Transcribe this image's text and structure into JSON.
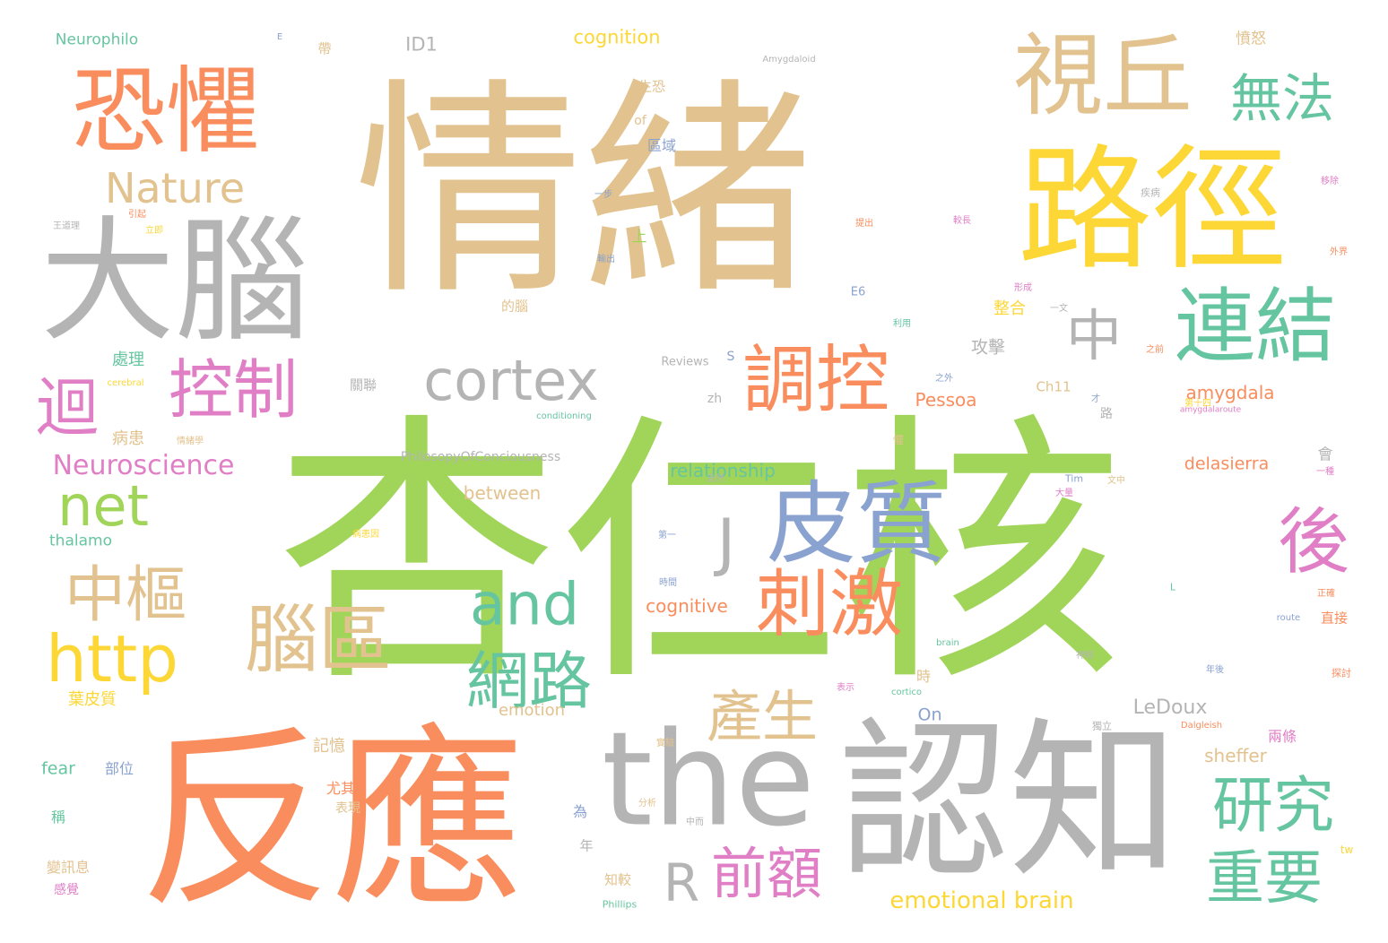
{
  "colors": {
    "green": "#a1d55a",
    "tan": "#e2c28e",
    "orange": "#f98d5d",
    "yellow": "#fcd736",
    "gray": "#b4b4b4",
    "teal": "#66c5a1",
    "pink": "#e07ec6",
    "blue": "#8aa2cf"
  },
  "words": [
    {
      "text": "杏仁核",
      "color": "green"
    },
    {
      "text": "情緒",
      "color": "tan"
    },
    {
      "text": "反應",
      "color": "orange"
    },
    {
      "text": "認知",
      "color": "gray"
    },
    {
      "text": "路徑",
      "color": "yellow"
    },
    {
      "text": "大腦",
      "color": "gray"
    },
    {
      "text": "恐懼",
      "color": "orange"
    },
    {
      "text": "the",
      "color": "gray"
    },
    {
      "text": "視丘",
      "color": "tan"
    },
    {
      "text": "皮質",
      "color": "blue"
    },
    {
      "text": "cortex",
      "color": "gray"
    },
    {
      "text": "連結",
      "color": "teal"
    },
    {
      "text": "調控",
      "color": "orange"
    },
    {
      "text": "控制",
      "color": "pink"
    },
    {
      "text": "刺激",
      "color": "orange"
    },
    {
      "text": "腦區",
      "color": "tan"
    },
    {
      "text": "網路",
      "color": "teal"
    },
    {
      "text": "and",
      "color": "teal"
    },
    {
      "text": "http",
      "color": "yellow"
    },
    {
      "text": "net",
      "color": "green"
    },
    {
      "text": "中樞",
      "color": "tan"
    },
    {
      "text": "無法",
      "color": "teal"
    },
    {
      "text": "研究",
      "color": "teal"
    },
    {
      "text": "重要",
      "color": "teal"
    },
    {
      "text": "前額",
      "color": "pink"
    },
    {
      "text": "產生",
      "color": "tan"
    },
    {
      "text": "迴",
      "color": "pink"
    },
    {
      "text": "後",
      "color": "pink"
    },
    {
      "text": "中",
      "color": "gray"
    },
    {
      "text": "Nature",
      "color": "tan"
    },
    {
      "text": "Neuroscience",
      "color": "pink"
    },
    {
      "text": "R",
      "color": "gray"
    },
    {
      "text": "J",
      "color": "gray"
    },
    {
      "text": "emotional brain",
      "color": "yellow"
    },
    {
      "text": "Neurophilo",
      "color": "teal"
    },
    {
      "text": "cognition",
      "color": "yellow"
    },
    {
      "text": "ID1",
      "color": "gray"
    },
    {
      "text": "amygdala",
      "color": "orange"
    },
    {
      "text": "delasierra",
      "color": "orange"
    },
    {
      "text": "Pessoa",
      "color": "orange"
    },
    {
      "text": "relationship",
      "color": "teal"
    },
    {
      "text": "between",
      "color": "tan"
    },
    {
      "text": "cognitive",
      "color": "orange"
    },
    {
      "text": "LeDoux",
      "color": "gray"
    },
    {
      "text": "sheffer",
      "color": "tan"
    },
    {
      "text": "emotion",
      "color": "tan"
    },
    {
      "text": "thalamo",
      "color": "teal"
    },
    {
      "text": "fear",
      "color": "teal"
    },
    {
      "text": "On",
      "color": "blue"
    },
    {
      "text": "Reviews",
      "color": "gray"
    },
    {
      "text": "PhilosopyOfConciousness",
      "color": "gray"
    },
    {
      "text": "Amygdaloid",
      "color": "gray"
    },
    {
      "text": "Ch11",
      "color": "tan"
    },
    {
      "text": "of",
      "color": "tan"
    },
    {
      "text": "zh",
      "color": "gray"
    },
    {
      "text": "conditioning",
      "color": "teal"
    },
    {
      "text": "amygdalaroute",
      "color": "pink"
    },
    {
      "text": "cerebral",
      "color": "yellow"
    },
    {
      "text": "Dalgleish",
      "color": "orange"
    },
    {
      "text": "brain",
      "color": "teal"
    },
    {
      "text": "route",
      "color": "blue"
    },
    {
      "text": "cortico",
      "color": "teal"
    },
    {
      "text": "Phillips",
      "color": "teal"
    },
    {
      "text": "Tim",
      "color": "blue"
    },
    {
      "text": "E6",
      "color": "blue"
    },
    {
      "text": "tw",
      "color": "yellow"
    },
    {
      "text": "E",
      "color": "blue"
    },
    {
      "text": "S",
      "color": "blue"
    },
    {
      "text": "L",
      "color": "teal"
    },
    {
      "text": "處理",
      "color": "teal"
    },
    {
      "text": "病患",
      "color": "tan"
    },
    {
      "text": "葉皮質",
      "color": "yellow"
    },
    {
      "text": "部位",
      "color": "blue"
    },
    {
      "text": "記憶",
      "color": "tan"
    },
    {
      "text": "尤其",
      "color": "orange"
    },
    {
      "text": "表現",
      "color": "tan"
    },
    {
      "text": "稱",
      "color": "teal"
    },
    {
      "text": "變訊息",
      "color": "tan"
    },
    {
      "text": "感覺",
      "color": "pink"
    },
    {
      "text": "攻擊",
      "color": "gray"
    },
    {
      "text": "整合",
      "color": "yellow"
    },
    {
      "text": "區域",
      "color": "blue"
    },
    {
      "text": "的腦",
      "color": "tan"
    },
    {
      "text": "關聯",
      "color": "gray"
    },
    {
      "text": "生恐",
      "color": "tan"
    },
    {
      "text": "憤怒",
      "color": "tan"
    },
    {
      "text": "直接",
      "color": "orange"
    },
    {
      "text": "兩條",
      "color": "pink"
    },
    {
      "text": "帶",
      "color": "tan"
    },
    {
      "text": "上",
      "color": "green"
    },
    {
      "text": "為",
      "color": "blue"
    },
    {
      "text": "年",
      "color": "gray"
    },
    {
      "text": "知較",
      "color": "tan"
    },
    {
      "text": "時",
      "color": "tan"
    },
    {
      "text": "會",
      "color": "gray"
    },
    {
      "text": "路",
      "color": "gray"
    },
    {
      "text": "一步",
      "color": "blue"
    },
    {
      "text": "王道理",
      "color": "gray"
    },
    {
      "text": "情緒學",
      "color": "tan"
    },
    {
      "text": "病患因",
      "color": "yellow"
    },
    {
      "text": "立即",
      "color": "yellow"
    },
    {
      "text": "引起",
      "color": "orange"
    },
    {
      "text": "輸出",
      "color": "blue"
    },
    {
      "text": "疾病",
      "color": "gray"
    },
    {
      "text": "移除",
      "color": "pink"
    },
    {
      "text": "外界",
      "color": "orange"
    },
    {
      "text": "正確",
      "color": "orange"
    },
    {
      "text": "探討",
      "color": "orange"
    },
    {
      "text": "獨立",
      "color": "gray"
    },
    {
      "text": "大量",
      "color": "pink"
    },
    {
      "text": "文中",
      "color": "tan"
    },
    {
      "text": "第一",
      "color": "blue"
    },
    {
      "text": "時間",
      "color": "blue"
    },
    {
      "text": "表示",
      "color": "pink"
    },
    {
      "text": "實驗",
      "color": "tan"
    },
    {
      "text": "懼",
      "color": "tan"
    },
    {
      "text": "中而",
      "color": "gray"
    },
    {
      "text": "分析",
      "color": "tan"
    },
    {
      "text": "第十四",
      "color": "yellow"
    },
    {
      "text": "之外",
      "color": "blue"
    },
    {
      "text": "之前",
      "color": "orange"
    },
    {
      "text": "利用",
      "color": "teal"
    },
    {
      "text": "提出",
      "color": "orange"
    },
    {
      "text": "較長",
      "color": "pink"
    },
    {
      "text": "年後",
      "color": "blue"
    },
    {
      "text": "神經",
      "color": "gray"
    },
    {
      "text": "形成",
      "color": "pink"
    },
    {
      "text": "一文",
      "color": "gray"
    },
    {
      "text": "自然",
      "color": "gray"
    },
    {
      "text": "一種",
      "color": "pink"
    },
    {
      "text": "才",
      "color": "blue"
    }
  ]
}
